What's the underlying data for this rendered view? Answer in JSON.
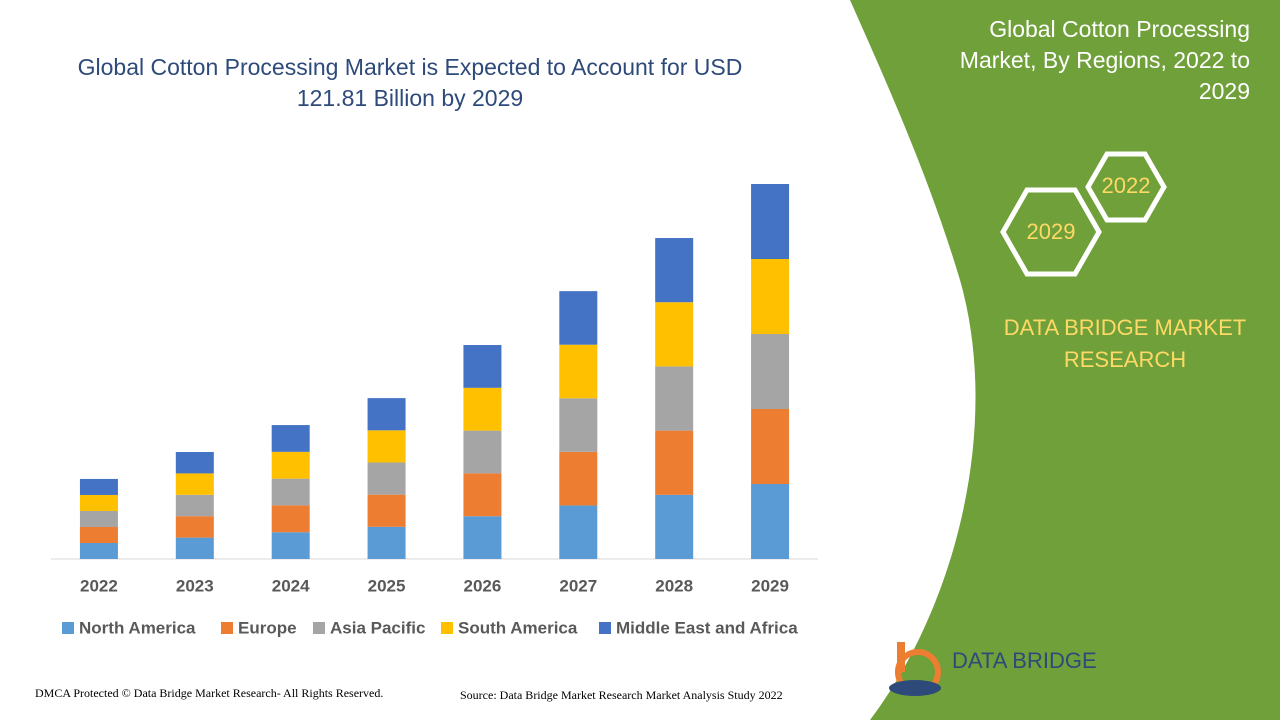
{
  "chart_data": {
    "type": "stacked-bar",
    "title": "Global Cotton Processing Market is Expected to Account for USD 121.81 Billion by 2029",
    "categories": [
      "2022",
      "2023",
      "2024",
      "2025",
      "2026",
      "2027",
      "2028",
      "2029"
    ],
    "series": [
      {
        "name": "North America",
        "color": "#5b9bd5",
        "values": [
          5.2,
          6.95,
          8.7,
          10.45,
          13.9,
          17.4,
          20.85,
          24.36
        ]
      },
      {
        "name": "Europe",
        "color": "#ed7d31",
        "values": [
          5.2,
          6.95,
          8.7,
          10.45,
          13.9,
          17.4,
          20.85,
          24.36
        ]
      },
      {
        "name": "Asia Pacific",
        "color": "#a5a5a5",
        "values": [
          5.2,
          6.95,
          8.7,
          10.45,
          13.9,
          17.4,
          20.85,
          24.36
        ]
      },
      {
        "name": "South America",
        "color": "#ffc000",
        "values": [
          5.2,
          6.95,
          8.7,
          10.45,
          13.9,
          17.4,
          20.85,
          24.36
        ]
      },
      {
        "name": "Middle East and Africa",
        "color": "#4472c4",
        "values": [
          5.2,
          6.95,
          8.7,
          10.45,
          13.9,
          17.4,
          20.85,
          24.36
        ]
      }
    ],
    "legend": "bottom"
  },
  "sidebar": {
    "title": "Global Cotton Processing Market, By Regions, 2022 to 2029",
    "hex_labels": [
      "2022",
      "2029"
    ],
    "brand": "DATA BRIDGE MARKET RESEARCH"
  },
  "footer": {
    "copyright": "DMCA Protected © Data Bridge Market Research- All Rights Reserved.",
    "source": "Source: Data Bridge Market Research Market Analysis Study 2022",
    "logo": "DATA BRIDGE"
  }
}
